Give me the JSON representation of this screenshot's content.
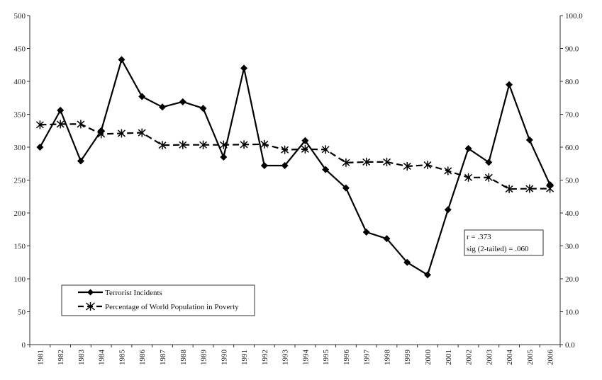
{
  "chart_data": {
    "type": "line",
    "x": [
      "1981",
      "1982",
      "1983",
      "1984",
      "1985",
      "1986",
      "1987",
      "1988",
      "1989",
      "1990",
      "1991",
      "1992",
      "1993",
      "1994",
      "1995",
      "1996",
      "1997",
      "1998",
      "1999",
      "2000",
      "2001",
      "2002",
      "2003",
      "2004",
      "2005",
      "2006"
    ],
    "series": [
      {
        "name": "Terrorist Incidents",
        "axis": "left",
        "marker": "diamond",
        "values": [
          300,
          356,
          279,
          325,
          433,
          377,
          361,
          369,
          359,
          285,
          420,
          272,
          272,
          310,
          266,
          238,
          171,
          161,
          125,
          106,
          205,
          298,
          277,
          395,
          311,
          243
        ]
      },
      {
        "name": "Percentage of World Population in Poverty",
        "axis": "right",
        "marker": "asterisk",
        "values": [
          66.8,
          67.0,
          67.0,
          64.0,
          64.2,
          64.4,
          60.6,
          60.7,
          60.7,
          60.7,
          60.8,
          60.9,
          59.2,
          59.4,
          59.3,
          55.3,
          55.5,
          55.5,
          54.2,
          54.6,
          52.8,
          50.8,
          50.8,
          47.3,
          47.4,
          47.4
        ]
      }
    ],
    "y_left": {
      "ylim": [
        0,
        500
      ],
      "ticks": [
        "0",
        "50",
        "100",
        "150",
        "200",
        "250",
        "300",
        "350",
        "400",
        "450",
        "500"
      ]
    },
    "y_right": {
      "ylim": [
        0,
        100
      ],
      "ticks": [
        "0.0",
        "10.0",
        "20.0",
        "30.0",
        "40.0",
        "50.0",
        "60.0",
        "70.0",
        "80.0",
        "90.0",
        "100.0"
      ]
    },
    "grid": false,
    "legend": {
      "placement": "bottom-left",
      "entries": [
        "Terrorist Incidents",
        "Percentage of World Population in Poverty"
      ]
    },
    "annotation": {
      "placement": "right",
      "lines": [
        "r = .373",
        "sig (2-tailed) = .060"
      ]
    },
    "colors": {
      "line": "#000000",
      "axis": "#333333",
      "background": "#ffffff"
    }
  }
}
